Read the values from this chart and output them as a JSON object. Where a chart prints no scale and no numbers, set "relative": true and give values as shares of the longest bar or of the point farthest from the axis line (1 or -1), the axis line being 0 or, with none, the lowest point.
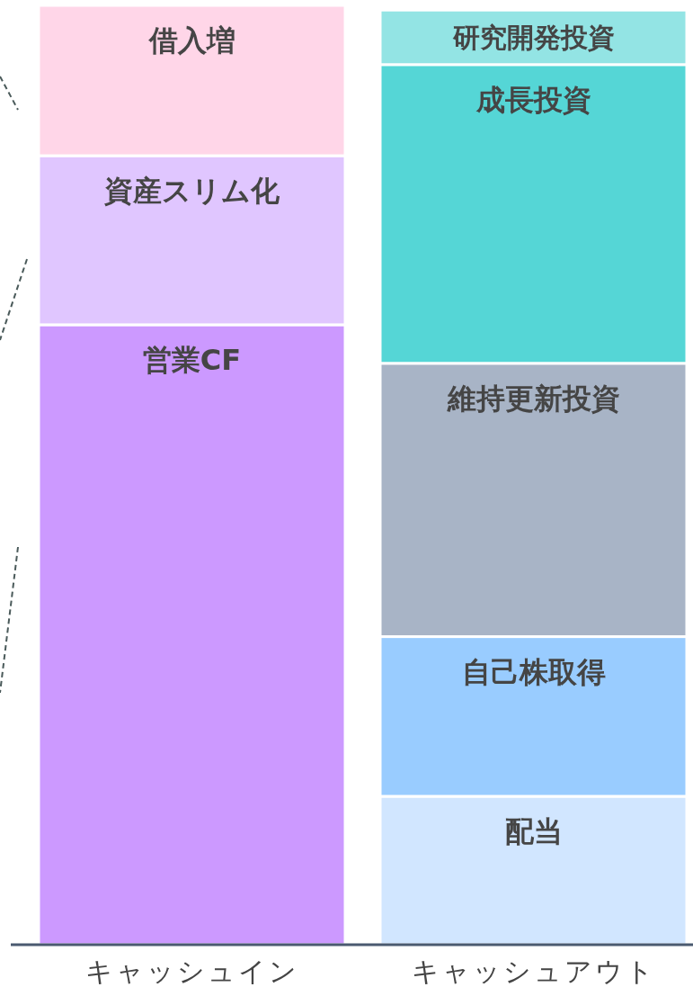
{
  "chart_data": {
    "type": "bar",
    "stacked": true,
    "relative": true,
    "categories": [
      "キャッシュイン",
      "キャッシュアウト"
    ],
    "series": [
      {
        "name": "営業CF",
        "color": "#cc99ff",
        "values": [
          0.66,
          null
        ]
      },
      {
        "name": "資産スリム化",
        "color": "#e0c6ff",
        "values": [
          0.18,
          null
        ]
      },
      {
        "name": "借入増",
        "color": "#ffd6e8",
        "values": [
          0.16,
          null
        ]
      },
      {
        "name": "配当",
        "color": "#d1e6ff",
        "values": [
          null,
          0.158
        ]
      },
      {
        "name": "自己株取得",
        "color": "#99ccff",
        "values": [
          null,
          0.17
        ]
      },
      {
        "name": "維持更新投資",
        "color": "#a8b4c6",
        "values": [
          null,
          0.291
        ]
      },
      {
        "name": "成長投資",
        "color": "#55d6d6",
        "values": [
          null,
          0.318
        ]
      },
      {
        "name": "研究開発投資",
        "color": "#93e4e4",
        "values": [
          null,
          0.058
        ]
      }
    ]
  }
}
